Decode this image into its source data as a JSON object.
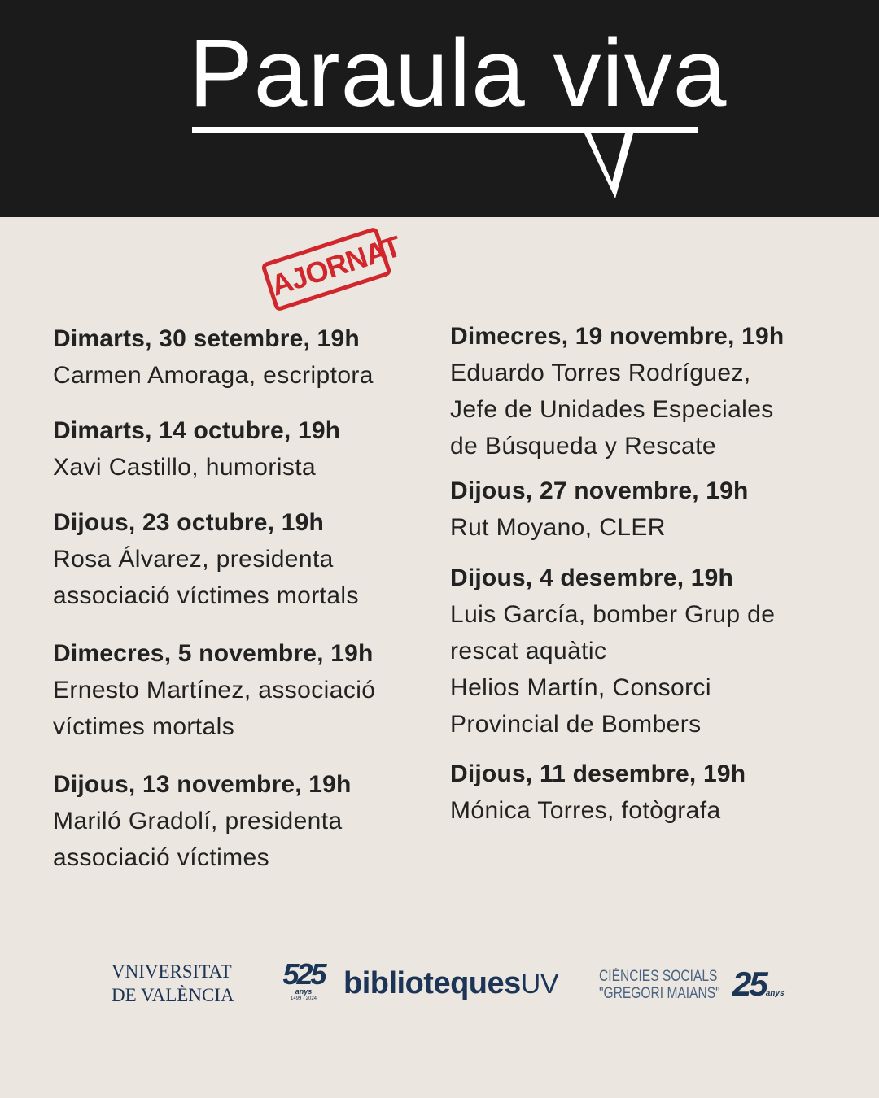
{
  "header": {
    "title": "Paraula viva"
  },
  "stamp": {
    "text": "AJORNAT",
    "color": "#d1262b"
  },
  "events_left": [
    {
      "heading": "Dimarts, 30 setembre, 19h",
      "lines": [
        "Carmen Amoraga, escriptora"
      ]
    },
    {
      "heading": "Dimarts, 14 octubre, 19h",
      "lines": [
        "Xavi Castillo, humorista"
      ]
    },
    {
      "heading": "Dijous, 23 octubre, 19h",
      "lines": [
        "Rosa Álvarez, presidenta",
        "associació víctimes mortals"
      ]
    },
    {
      "heading": "Dimecres, 5 novembre, 19h",
      "lines": [
        "Ernesto Martínez, associació",
        "víctimes mortals"
      ]
    },
    {
      "heading": "Dijous, 13 novembre, 19h",
      "lines": [
        "Mariló Gradolí, presidenta",
        "associació víctimes"
      ]
    }
  ],
  "events_right": [
    {
      "heading": "Dimecres, 19 novembre, 19h",
      "lines": [
        "Eduardo Torres Rodríguez,",
        "Jefe de Unidades Especiales",
        "de Búsqueda y Rescate"
      ]
    },
    {
      "heading": "Dijous, 27 novembre, 19h",
      "lines": [
        "Rut Moyano, CLER"
      ]
    },
    {
      "heading": "Dijous, 4 desembre, 19h",
      "lines": [
        "Luis García, bomber Grup de",
        "rescat aquàtic",
        "Helios Martín, Consorci",
        "Provincial de Bombers"
      ]
    },
    {
      "heading": "Dijous, 11 desembre, 19h",
      "lines": [
        "Mónica Torres, fotògrafa"
      ]
    }
  ],
  "logos": {
    "uv_line1": "VNIVERSITAT",
    "uv_line2": "DE VALÈNCIA",
    "anniv_525": "525",
    "anniv_525_sub": "anys",
    "anniv_525_years": "1499 · 2024",
    "biblioteques": "biblioteques",
    "biblioteques_uv": "UV",
    "cs_line1": "CIÈNCIES SOCIALS",
    "cs_line2": "\"GREGORI MAIANS\"",
    "anniv_25": "25",
    "anniv_25_sub": "anys",
    "brand_color": "#1c3556"
  }
}
